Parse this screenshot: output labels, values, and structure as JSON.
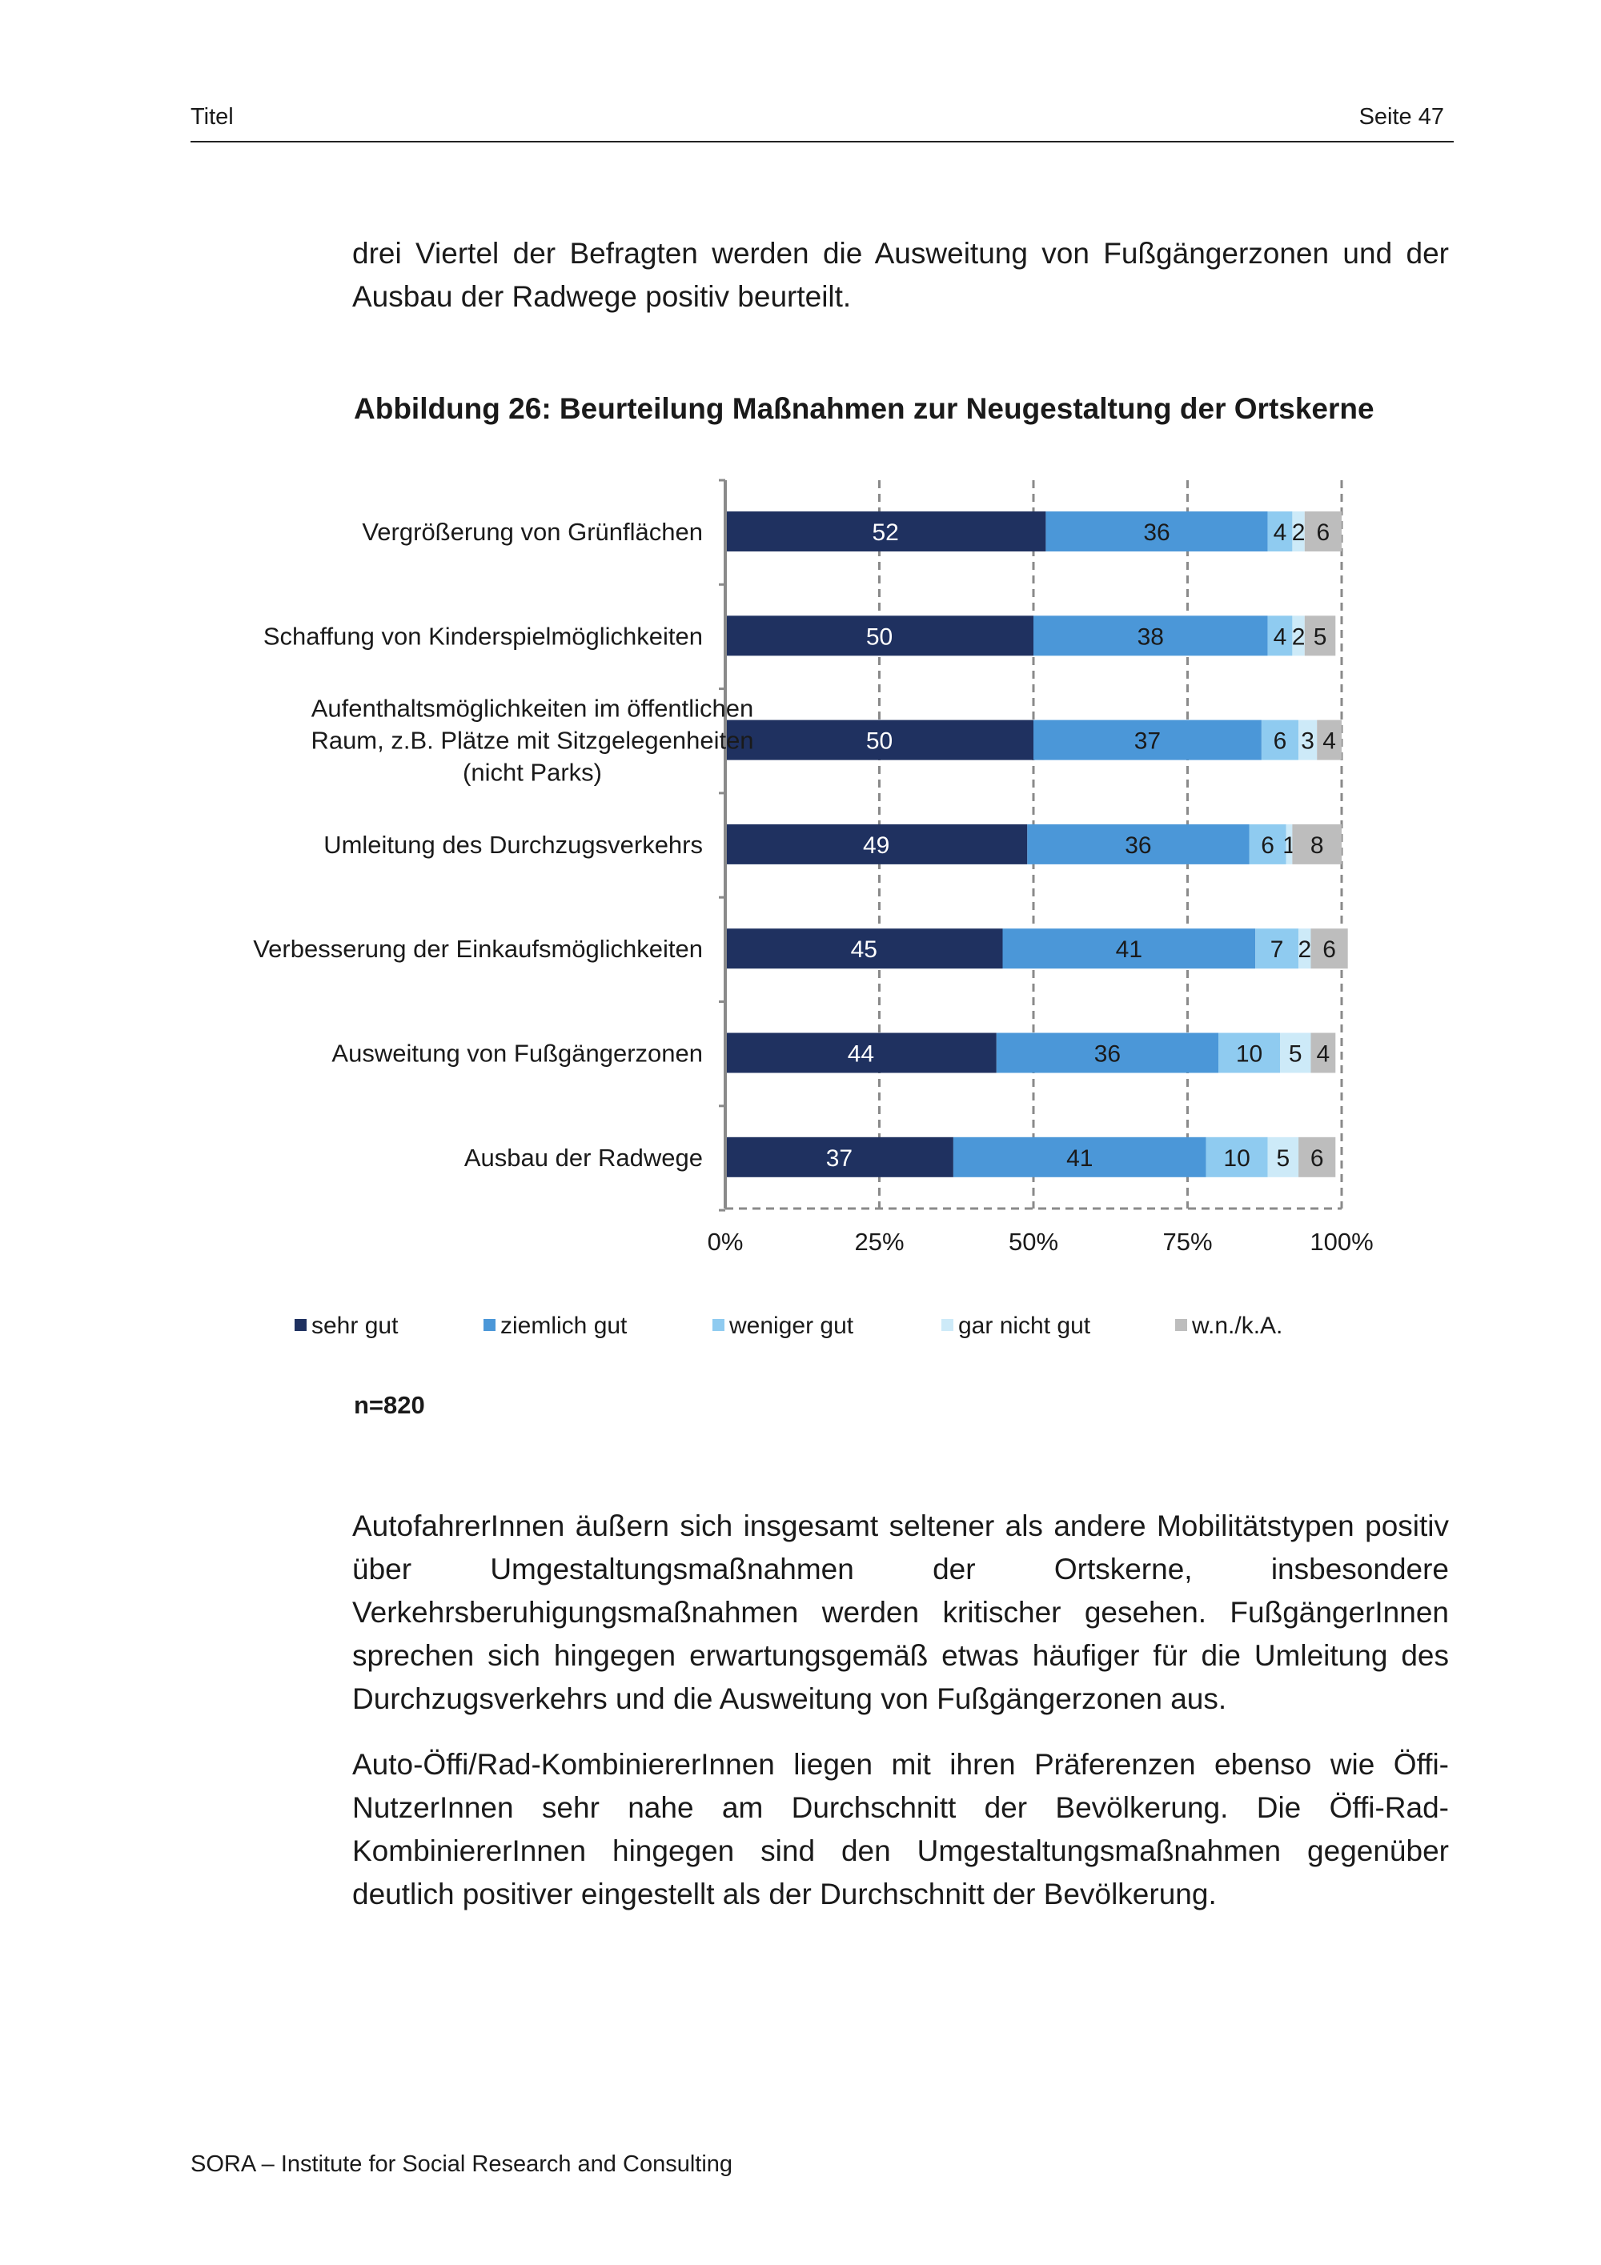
{
  "header": {
    "left": "Titel",
    "right": "Seite 47"
  },
  "paragraphs": {
    "intro": "drei Viertel der Befragten werden die Ausweitung von Fußgängerzonen und der Ausbau der Radwege positiv beurteilt.",
    "p2": "AutofahrerInnen äußern sich insgesamt seltener als andere Mobilitätstypen positiv über Umgestaltungsmaßnahmen der Ortskerne, insbesondere Verkehrsberuhigungsmaßnahmen werden kritischer gesehen. FußgängerInnen sprechen sich hingegen erwartungsgemäß etwas häufiger für die Umleitung des Durchzugsverkehrs und die Ausweitung von Fußgängerzonen aus.",
    "p3": "Auto-Öffi/Rad-KombiniererInnen liegen mit ihren Präferenzen ebenso wie Öffi-NutzerInnen sehr nahe am Durchschnitt der Bevölkerung. Die Öffi-Rad-KombiniererInnen hingegen sind den Umgestaltungsmaßnahmen gegenüber deutlich positiver eingestellt als der Durchschnitt der Bevölkerung."
  },
  "figure": {
    "title": "Abbildung 26: Beurteilung Maßnahmen zur Neugestaltung der Ortskerne",
    "n": "n=820"
  },
  "footer": "SORA – Institute for Social Research and Consulting",
  "chart_data": {
    "type": "bar",
    "orientation": "horizontal",
    "stacked": true,
    "title": "Abbildung 26: Beurteilung Maßnahmen zur Neugestaltung der Ortskerne",
    "categories": [
      [
        "Vergrößerung von Grünflächen"
      ],
      [
        "Schaffung von Kinderspielmöglichkeiten"
      ],
      [
        "Aufenthaltsmöglichkeiten im öffentlichen",
        "Raum, z.B. Plätze mit Sitzgelegenheiten",
        "(nicht Parks)"
      ],
      [
        "Umleitung des Durchzugsverkehrs"
      ],
      [
        "Verbesserung der Einkaufsmöglichkeiten"
      ],
      [
        "Ausweitung von Fußgängerzonen"
      ],
      [
        "Ausbau der Radwege"
      ]
    ],
    "series": [
      {
        "name": "sehr gut",
        "color": "#1f3160",
        "label_color": "#ffffff",
        "values": [
          52,
          50,
          50,
          49,
          45,
          44,
          37
        ]
      },
      {
        "name": "ziemlich gut",
        "color": "#4b97d8",
        "label_color": "#1a1a1a",
        "values": [
          36,
          38,
          37,
          36,
          41,
          36,
          41
        ]
      },
      {
        "name": "weniger gut",
        "color": "#8fcbf0",
        "label_color": "#1a1a1a",
        "values": [
          4,
          4,
          6,
          6,
          7,
          10,
          10
        ]
      },
      {
        "name": "gar nicht gut",
        "color": "#cdeaf8",
        "label_color": "#1a1a1a",
        "values": [
          2,
          2,
          3,
          1,
          2,
          5,
          5
        ]
      },
      {
        "name": "w.n./k.A.",
        "color": "#bdbdbd",
        "label_color": "#1a1a1a",
        "values": [
          6,
          5,
          4,
          8,
          6,
          4,
          6
        ]
      }
    ],
    "x_ticks": [
      "0%",
      "25%",
      "50%",
      "75%",
      "100%"
    ],
    "xlim": [
      0,
      100
    ],
    "grid": true,
    "legend": "bottom"
  }
}
